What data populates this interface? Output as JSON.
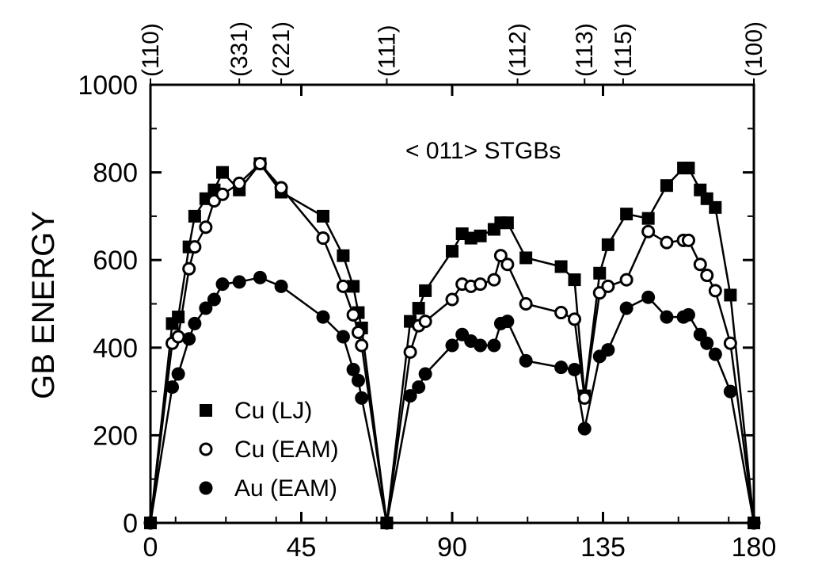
{
  "chart_data": {
    "type": "line",
    "ylabel": "GB ENERGY",
    "xlim": [
      0,
      180
    ],
    "ylim": [
      0,
      1000
    ],
    "x_ticks": [
      0,
      45,
      90,
      135,
      180
    ],
    "y_ticks": [
      0,
      200,
      400,
      600,
      800,
      1000
    ],
    "top_axis": [
      {
        "x": 0,
        "label": "(110)"
      },
      {
        "x": 26.5,
        "label": "(331)"
      },
      {
        "x": 39,
        "label": "(221)"
      },
      {
        "x": 70.5,
        "label": "(111)"
      },
      {
        "x": 109.5,
        "label": "(112)"
      },
      {
        "x": 129.5,
        "label": "(113)"
      },
      {
        "x": 141,
        "label": "(115)"
      },
      {
        "x": 180,
        "label": "(100)"
      }
    ],
    "annotation": "< 011> STGBs",
    "grid": false,
    "legend_position": "bottom-left",
    "series": [
      {
        "name": "Cu (LJ)",
        "marker": "filled-square",
        "points": [
          [
            0,
            0
          ],
          [
            6.5,
            455
          ],
          [
            8.3,
            470
          ],
          [
            11.5,
            630
          ],
          [
            13.2,
            700
          ],
          [
            16.5,
            740
          ],
          [
            19,
            760
          ],
          [
            21.5,
            800
          ],
          [
            26.5,
            760
          ],
          [
            32.7,
            820
          ],
          [
            39,
            755
          ],
          [
            51.5,
            700
          ],
          [
            57.5,
            610
          ],
          [
            60.5,
            540
          ],
          [
            62,
            480
          ],
          [
            63,
            445
          ],
          [
            70.5,
            0
          ],
          [
            77.5,
            460
          ],
          [
            80,
            490
          ],
          [
            82,
            530
          ],
          [
            90,
            620
          ],
          [
            93,
            660
          ],
          [
            95.6,
            650
          ],
          [
            98.4,
            655
          ],
          [
            102.5,
            670
          ],
          [
            104.5,
            685
          ],
          [
            106.5,
            685
          ],
          [
            112,
            605
          ],
          [
            122.5,
            585
          ],
          [
            126.5,
            555
          ],
          [
            129.5,
            290
          ],
          [
            134,
            570
          ],
          [
            136.5,
            635
          ],
          [
            142,
            705
          ],
          [
            148.5,
            695
          ],
          [
            154,
            770
          ],
          [
            159,
            810
          ],
          [
            160.5,
            810
          ],
          [
            164,
            760
          ],
          [
            166,
            740
          ],
          [
            168.5,
            720
          ],
          [
            173,
            520
          ],
          [
            180,
            0
          ]
        ]
      },
      {
        "name": "Cu (EAM)",
        "marker": "open-circle",
        "points": [
          [
            0,
            0
          ],
          [
            6.5,
            410
          ],
          [
            8.3,
            425
          ],
          [
            11.5,
            580
          ],
          [
            13.2,
            630
          ],
          [
            16.5,
            675
          ],
          [
            19,
            735
          ],
          [
            21.5,
            750
          ],
          [
            26.5,
            775
          ],
          [
            32.7,
            820
          ],
          [
            39,
            765
          ],
          [
            51.5,
            650
          ],
          [
            57.5,
            540
          ],
          [
            60.5,
            475
          ],
          [
            62,
            435
          ],
          [
            63,
            405
          ],
          [
            70.5,
            0
          ],
          [
            77.5,
            390
          ],
          [
            80,
            450
          ],
          [
            82,
            460
          ],
          [
            90,
            510
          ],
          [
            93,
            545
          ],
          [
            95.6,
            540
          ],
          [
            98.4,
            545
          ],
          [
            102.5,
            555
          ],
          [
            104.5,
            610
          ],
          [
            106.5,
            590
          ],
          [
            112,
            500
          ],
          [
            122.5,
            480
          ],
          [
            126.5,
            465
          ],
          [
            129.5,
            285
          ],
          [
            134,
            525
          ],
          [
            136.5,
            540
          ],
          [
            142,
            555
          ],
          [
            148.5,
            665
          ],
          [
            154,
            640
          ],
          [
            159,
            645
          ],
          [
            160.5,
            645
          ],
          [
            164,
            590
          ],
          [
            166,
            565
          ],
          [
            168.5,
            530
          ],
          [
            173,
            410
          ],
          [
            180,
            0
          ]
        ]
      },
      {
        "name": "Au (EAM)",
        "marker": "filled-circle",
        "points": [
          [
            0,
            0
          ],
          [
            6.5,
            310
          ],
          [
            8.3,
            340
          ],
          [
            11.5,
            420
          ],
          [
            13.2,
            455
          ],
          [
            16.5,
            490
          ],
          [
            19,
            510
          ],
          [
            21.5,
            545
          ],
          [
            26.5,
            550
          ],
          [
            32.7,
            560
          ],
          [
            39,
            540
          ],
          [
            51.5,
            470
          ],
          [
            57.5,
            425
          ],
          [
            60.5,
            350
          ],
          [
            62,
            325
          ],
          [
            63,
            285
          ],
          [
            70.5,
            0
          ],
          [
            77.5,
            290
          ],
          [
            80,
            310
          ],
          [
            82,
            340
          ],
          [
            90,
            405
          ],
          [
            93,
            430
          ],
          [
            95.6,
            415
          ],
          [
            98.4,
            405
          ],
          [
            102.5,
            405
          ],
          [
            104.5,
            455
          ],
          [
            106.5,
            460
          ],
          [
            112,
            370
          ],
          [
            122.5,
            355
          ],
          [
            126.5,
            350
          ],
          [
            129.5,
            215
          ],
          [
            134,
            380
          ],
          [
            136.5,
            395
          ],
          [
            142,
            490
          ],
          [
            148.5,
            515
          ],
          [
            154,
            470
          ],
          [
            159,
            470
          ],
          [
            160.5,
            475
          ],
          [
            164,
            430
          ],
          [
            166,
            410
          ],
          [
            168.5,
            385
          ],
          [
            173,
            300
          ],
          [
            180,
            0
          ]
        ]
      }
    ]
  }
}
